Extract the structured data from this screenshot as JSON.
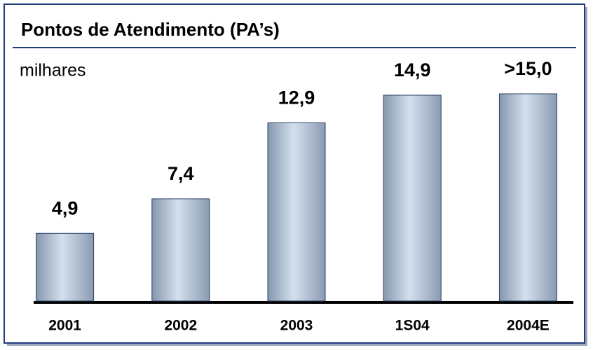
{
  "chart_data": {
    "type": "bar",
    "title": "Pontos de Atendimento (PA’s)",
    "subtitle": "milhares",
    "categories": [
      "2001",
      "2002",
      "2003",
      "1S04",
      "2004E"
    ],
    "values": [
      4.9,
      7.4,
      12.9,
      14.9,
      15.0
    ],
    "value_labels": [
      "4,9",
      "7,4",
      "12,9",
      "14,9",
      ">15,0"
    ],
    "color": "#a9b9cc"
  }
}
